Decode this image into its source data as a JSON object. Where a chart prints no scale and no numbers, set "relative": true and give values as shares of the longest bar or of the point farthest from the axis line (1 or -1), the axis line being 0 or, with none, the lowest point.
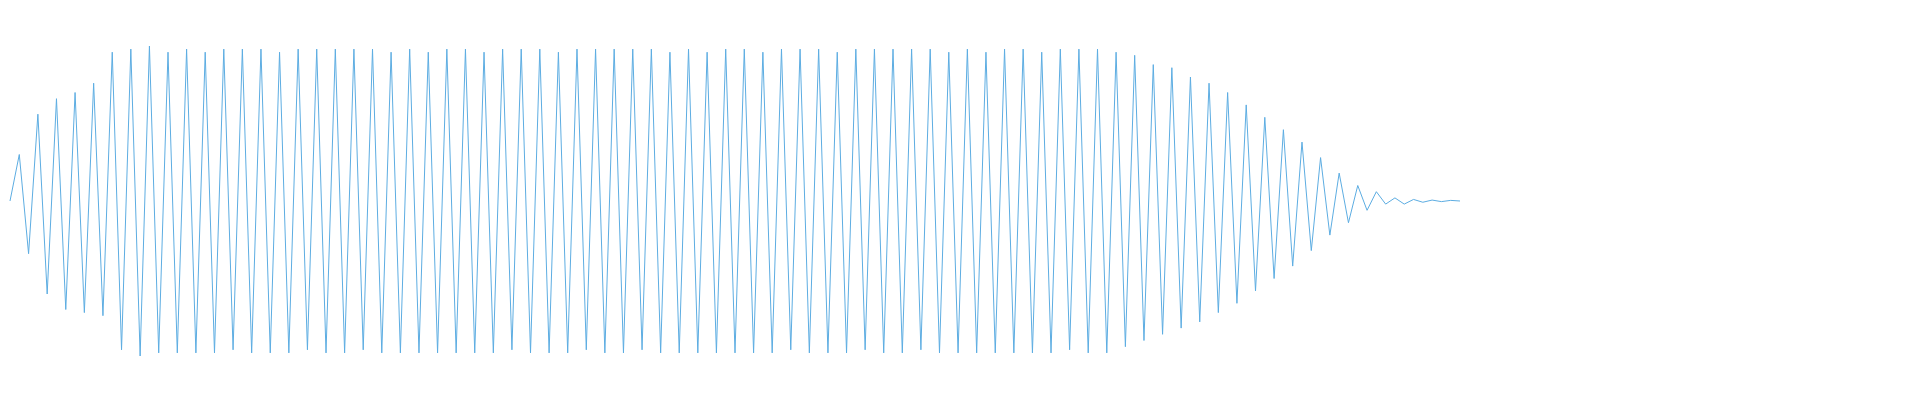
{
  "chart_data": {
    "type": "line",
    "relative": true,
    "categories": [
      null,
      null,
      null,
      null,
      null,
      null,
      null,
      null,
      null,
      null,
      null,
      null,
      null,
      null,
      null,
      null,
      null,
      null,
      null,
      null,
      null,
      null,
      null,
      null,
      null,
      null,
      null,
      null,
      null,
      null,
      null,
      null,
      null,
      null,
      null,
      null,
      null,
      null,
      null,
      null,
      null,
      null,
      null,
      null,
      null,
      null,
      null,
      null,
      null,
      null,
      null,
      null,
      null,
      null,
      null,
      null,
      null,
      null,
      null,
      null,
      null,
      null,
      null,
      null,
      null,
      null,
      null,
      null,
      null,
      null,
      null,
      null,
      null,
      null,
      null,
      null,
      null,
      null,
      null,
      null,
      null,
      null,
      null,
      null,
      null,
      null,
      null,
      null,
      null,
      null,
      null,
      null,
      null,
      null,
      null,
      null,
      null,
      null,
      null,
      null,
      null,
      null,
      null,
      null,
      null,
      null,
      null,
      null,
      null,
      null,
      null,
      null,
      null,
      null,
      null,
      null,
      null,
      null,
      null,
      null,
      null,
      null,
      null,
      null,
      null,
      null,
      null,
      null,
      null,
      null,
      null,
      null,
      null,
      null,
      null,
      null,
      null,
      null,
      null,
      null,
      null,
      null,
      null,
      null,
      null,
      null,
      null,
      null,
      null,
      null,
      null,
      null,
      null,
      null,
      null,
      null,
      null
    ],
    "series": [
      {
        "color": "#5dade2",
        "values": [
          0.5,
          0.65,
          0.33,
          0.78,
          0.2,
          0.83,
          0.15,
          0.85,
          0.14,
          0.88,
          0.13,
          0.98,
          0.02,
          0.99,
          0,
          1,
          0.01,
          0.98,
          0.01,
          0.99,
          0.01,
          0.98,
          0.01,
          0.99,
          0.02,
          0.99,
          0.01,
          0.99,
          0.01,
          0.98,
          0.01,
          0.99,
          0.02,
          0.99,
          0.01,
          0.99,
          0.01,
          0.99,
          0.02,
          0.99,
          0.01,
          0.98,
          0.01,
          0.99,
          0.01,
          0.98,
          0.01,
          0.99,
          0.01,
          0.99,
          0.01,
          0.98,
          0.01,
          0.99,
          0.02,
          0.99,
          0.01,
          0.99,
          0.01,
          0.98,
          0.01,
          0.99,
          0.02,
          0.99,
          0.01,
          0.99,
          0.01,
          0.99,
          0.02,
          0.99,
          0.01,
          0.98,
          0.01,
          0.99,
          0.01,
          0.98,
          0.01,
          0.99,
          0.01,
          0.99,
          0.01,
          0.98,
          0.01,
          0.99,
          0.02,
          0.99,
          0.01,
          0.99,
          0.01,
          0.98,
          0.01,
          0.99,
          0.02,
          0.99,
          0.01,
          0.99,
          0.01,
          0.99,
          0.02,
          0.99,
          0.01,
          0.98,
          0.01,
          0.99,
          0.01,
          0.98,
          0.01,
          0.99,
          0.01,
          0.99,
          0.01,
          0.98,
          0.01,
          0.99,
          0.02,
          0.99,
          0.01,
          0.99,
          0.01,
          0.98,
          0.03,
          0.97,
          0.05,
          0.94,
          0.07,
          0.93,
          0.09,
          0.9,
          0.11,
          0.88,
          0.14,
          0.85,
          0.17,
          0.81,
          0.21,
          0.77,
          0.25,
          0.73,
          0.29,
          0.69,
          0.34,
          0.64,
          0.39,
          0.59,
          0.43,
          0.55,
          0.47,
          0.53,
          0.49,
          0.51,
          0.49,
          0.505,
          0.496,
          0.503,
          0.498,
          0.502,
          0.5
        ]
      }
    ]
  }
}
